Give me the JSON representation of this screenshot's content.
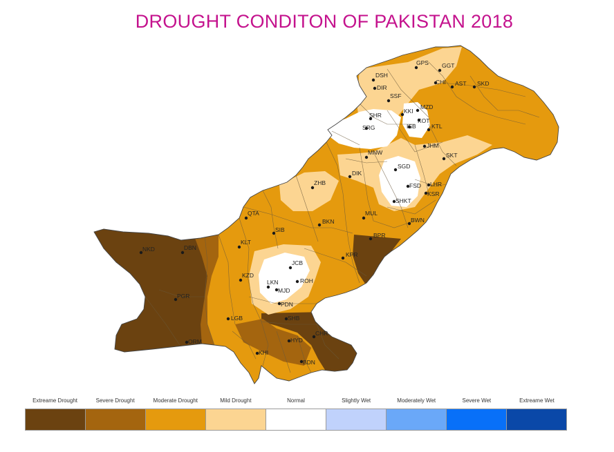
{
  "title": "DROUGHT CONDITON OF PAKISTAN 2018",
  "colors": {
    "extreme_drought": "#6b4210",
    "severe_drought": "#a4650f",
    "moderate_drought": "#e59a0e",
    "mild_drought": "#fcd592",
    "normal": "#ffffff",
    "slightly_wet": "#c0d2fc",
    "moderately_wet": "#6aa8f8",
    "severe_wet": "#0870f8",
    "extreme_wet": "#0a48a8"
  },
  "legend": [
    {
      "label": "Extreame Drought",
      "color": "#6b4210"
    },
    {
      "label": "Severe Drought",
      "color": "#a4650f"
    },
    {
      "label": "Moderate Drought",
      "color": "#e59a0e"
    },
    {
      "label": "Mild Drought",
      "color": "#fcd592"
    },
    {
      "label": "Normal",
      "color": "#ffffff"
    },
    {
      "label": "Slightly Wet",
      "color": "#c0d2fc"
    },
    {
      "label": "Moderately Wet",
      "color": "#6aa8f8"
    },
    {
      "label": "Severe Wet",
      "color": "#0870f8"
    },
    {
      "label": "Extreame Wet",
      "color": "#0a48a8"
    }
  ],
  "stations": {
    "GPS": "GPS",
    "GGT": "GGT",
    "DSH": "DSH",
    "DIR": "DIR",
    "CHI": "CHI",
    "AST": "AST",
    "SKD": "SKD",
    "SSF": "SSF",
    "KKI": "KKI",
    "MZD": "MZD",
    "SHR": "SHR",
    "KOT": "KOT",
    "ISB": "ISB",
    "KTL": "KTL",
    "SRG": "SRG",
    "JHM": "JHM",
    "SKT": "SKT",
    "MNW": "MNW",
    "SGD": "SGD",
    "DIK": "DIK",
    "FSD": "FSD",
    "LHR": "LHR",
    "KSR": "KSR",
    "ZHB": "ZHB",
    "SHKT": "SHKT",
    "QTA": "QTA",
    "BKN": "BKN",
    "MUL": "MUL",
    "BWN": "BWN",
    "SIB": "SIB",
    "BPR": "BPR",
    "NKD": "NKD",
    "DBN": "DBN",
    "KLT": "KLT",
    "KPR": "KPR",
    "JCB": "JCB",
    "KZD": "KZD",
    "ROH": "ROH",
    "LKN": "LKN",
    "MJD": "MJD",
    "PDN": "PDN",
    "PGR": "PGR",
    "LGB": "LGB",
    "SHB": "SHB",
    "CHR": "CHR",
    "HYD": "HYD",
    "ORM": "ORM",
    "KHI": "KHI",
    "BDN": "BDN"
  }
}
